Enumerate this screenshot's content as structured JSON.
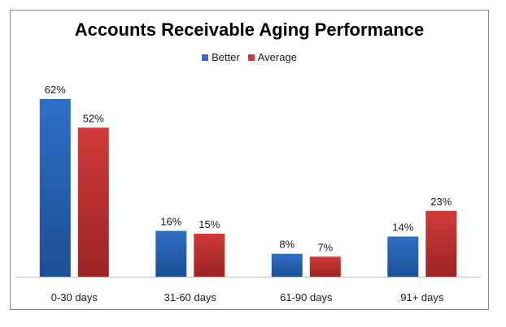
{
  "chart_data": {
    "type": "bar",
    "title": "Accounts Receivable Aging Performance",
    "categories": [
      "0-30 days",
      "31-60 days",
      "61-90 days",
      "91+ days"
    ],
    "series": [
      {
        "name": "Better",
        "values": [
          62,
          16,
          8,
          14
        ],
        "labels": [
          "62%",
          "16%",
          "8%",
          "14%"
        ],
        "color": "#2e6fc7",
        "color_dark": "#1d4f94"
      },
      {
        "name": "Average",
        "values": [
          52,
          15,
          7,
          23
        ],
        "labels": [
          "52%",
          "15%",
          "7%",
          "23%"
        ],
        "color": "#d13a3a",
        "color_dark": "#9c2424"
      }
    ],
    "ylim": [
      0,
      62
    ],
    "grid": false,
    "legend_position": "top"
  }
}
